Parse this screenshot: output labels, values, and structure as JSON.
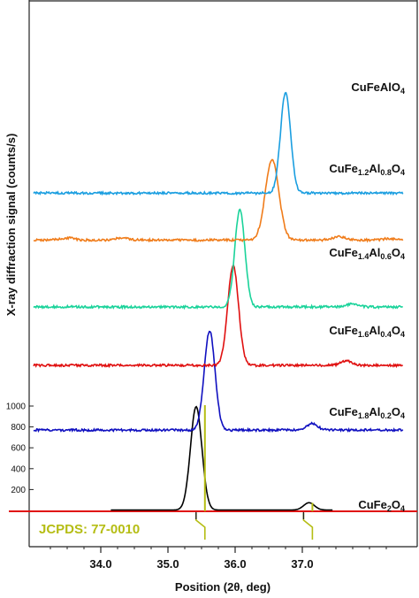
{
  "chart_data": {
    "type": "line",
    "title": "",
    "xlabel": "Position (2θ, deg)",
    "ylabel": "X-ray diffraction signal (counts/s)",
    "xlim": [
      33.0,
      38.5
    ],
    "x_ticks": [
      "34.0",
      "35.0",
      "36.0",
      "37.0"
    ],
    "y_ticks": [
      "200",
      "400",
      "600",
      "800",
      "1000"
    ],
    "y_tick_range": [
      0,
      1000
    ],
    "grid": false,
    "legend": "none",
    "reference": {
      "label": "JCPDS: 77-0010",
      "color": "#b5bd14",
      "peaks": [
        {
          "x": 35.55,
          "intensity": 100
        },
        {
          "x": 37.15,
          "intensity": 8
        }
      ]
    },
    "series": [
      {
        "formula": [
          "CuFe",
          "2",
          "O",
          "4"
        ],
        "color": "#000000",
        "baseline": 0,
        "peaks": [
          {
            "x": 35.42,
            "height": 990,
            "width": 0.085
          },
          {
            "x": 37.1,
            "height": 70,
            "width": 0.08
          }
        ]
      },
      {
        "formula": [
          "CuFe",
          "1.8",
          "Al",
          "0.2",
          "O",
          "4"
        ],
        "color": "#1010c0",
        "baseline": 770,
        "peaks": [
          {
            "x": 35.62,
            "height": 950,
            "width": 0.08
          },
          {
            "x": 37.15,
            "height": 60,
            "width": 0.08
          }
        ]
      },
      {
        "formula": [
          "CuFe",
          "1.6",
          "Al",
          "0.4",
          "O",
          "4"
        ],
        "color": "#e01010",
        "baseline": 1390,
        "peaks": [
          {
            "x": 35.97,
            "height": 960,
            "width": 0.08
          },
          {
            "x": 37.65,
            "height": 45,
            "width": 0.08
          }
        ]
      },
      {
        "formula": [
          "CuFe",
          "1.4",
          "Al",
          "0.6",
          "O",
          "4"
        ],
        "color": "#1ad39a",
        "baseline": 1950,
        "peaks": [
          {
            "x": 36.07,
            "height": 930,
            "width": 0.075
          },
          {
            "x": 37.75,
            "height": 30,
            "width": 0.08
          }
        ]
      },
      {
        "formula": [
          "CuFe",
          "1.2",
          "Al",
          "0.8",
          "O",
          "4"
        ],
        "color": "#f07c1a",
        "baseline": 2590,
        "peaks": [
          {
            "x": 36.55,
            "height": 770,
            "width": 0.1
          },
          {
            "x": 33.5,
            "height": 20,
            "width": 0.1
          },
          {
            "x": 34.3,
            "height": 18,
            "width": 0.1
          },
          {
            "x": 37.55,
            "height": 30,
            "width": 0.1
          },
          {
            "x": 38.3,
            "height": 15,
            "width": 0.1
          }
        ]
      },
      {
        "formula": [
          "CuFeAlO",
          "4"
        ],
        "color": "#1a9ee0",
        "baseline": 3040,
        "peaks": [
          {
            "x": 36.75,
            "height": 960,
            "width": 0.075
          }
        ]
      }
    ]
  }
}
